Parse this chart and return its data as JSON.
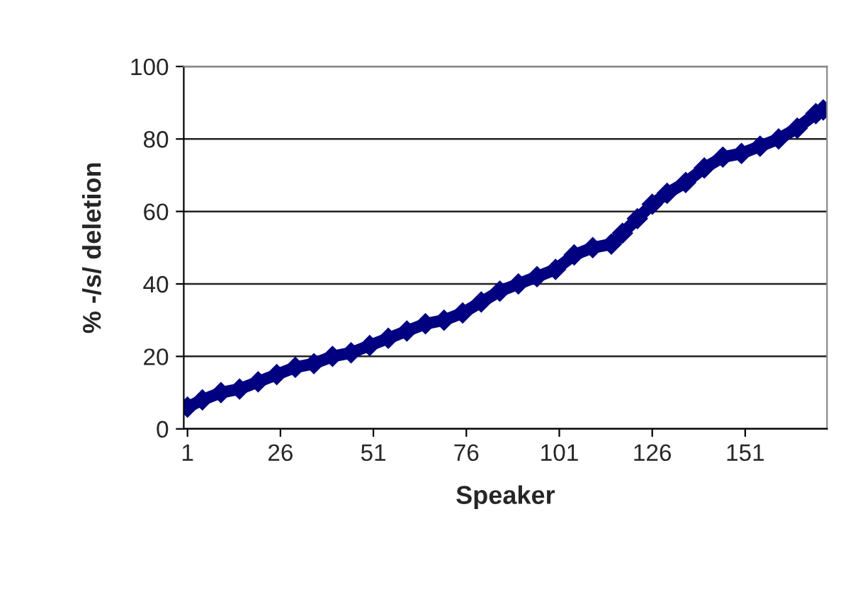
{
  "chart_data": {
    "type": "line",
    "xlabel": "Speaker",
    "ylabel": "% -/s/ deletion",
    "series": [
      {
        "color": "#000080",
        "x": [
          1,
          5,
          10,
          15,
          20,
          25,
          30,
          35,
          40,
          45,
          50,
          55,
          60,
          65,
          70,
          75,
          80,
          85,
          90,
          95,
          100,
          105,
          110,
          115,
          118,
          122,
          126,
          130,
          135,
          140,
          145,
          150,
          155,
          160,
          165,
          170,
          172
        ],
        "values": [
          6,
          8,
          10,
          11,
          13,
          15,
          17,
          18,
          20,
          21,
          23,
          25,
          27,
          29,
          30,
          32,
          35,
          38,
          40,
          42,
          44,
          48,
          50,
          51,
          54,
          58,
          62,
          65,
          68,
          72,
          75,
          76,
          78,
          80,
          83,
          87,
          88
        ]
      }
    ],
    "xlim": [
      0,
      173
    ],
    "xticks": [
      1,
      26,
      51,
      76,
      101,
      126,
      151
    ],
    "ylim": [
      0,
      100
    ],
    "yticks": [
      0,
      20,
      40,
      60,
      80,
      100
    ],
    "grid": "y",
    "legend": false,
    "marker": "diamond",
    "line_style": "solid"
  }
}
